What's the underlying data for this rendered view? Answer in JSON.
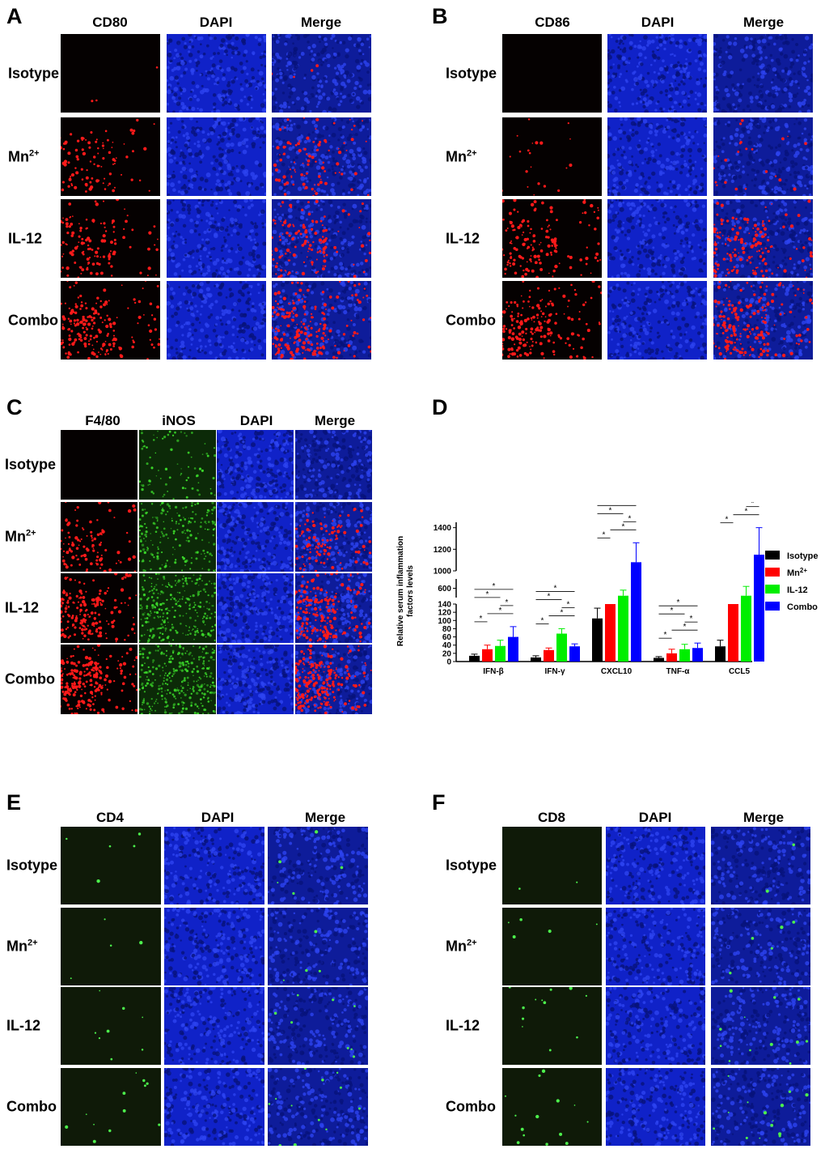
{
  "panels": [
    {
      "letter": "A",
      "columns": [
        "CD80",
        "DAPI",
        "Merge"
      ],
      "rows": [
        {
          "label": "Isotype",
          "sup": ""
        },
        {
          "label": "Mn",
          "sup": "2+"
        },
        {
          "label": "IL-12",
          "sup": ""
        },
        {
          "label": "Combo",
          "sup": ""
        }
      ],
      "marker_color": "red",
      "marker_density": [
        0.02,
        0.45,
        0.6,
        0.9
      ]
    },
    {
      "letter": "B",
      "columns": [
        "CD86",
        "DAPI",
        "Merge"
      ],
      "rows": [
        {
          "label": "Isotype",
          "sup": ""
        },
        {
          "label": "Mn",
          "sup": "2+"
        },
        {
          "label": "IL-12",
          "sup": ""
        },
        {
          "label": "Combo",
          "sup": ""
        }
      ],
      "marker_color": "red",
      "marker_density": [
        0.0,
        0.1,
        0.7,
        0.9
      ]
    },
    {
      "letter": "C",
      "columns": [
        "F4/80",
        "iNOS",
        "DAPI",
        "Merge"
      ],
      "rows": [
        {
          "label": "Isotype",
          "sup": ""
        },
        {
          "label": "Mn",
          "sup": "2+"
        },
        {
          "label": "IL-12",
          "sup": ""
        },
        {
          "label": "Combo",
          "sup": ""
        }
      ],
      "marker_color": "red",
      "marker_density": [
        0.0,
        0.5,
        0.85,
        1.0
      ]
    },
    {
      "letter": "E",
      "columns": [
        "CD4",
        "DAPI",
        "Merge"
      ],
      "rows": [
        {
          "label": "Isotype",
          "sup": ""
        },
        {
          "label": "Mn",
          "sup": "2+"
        },
        {
          "label": "IL-12",
          "sup": ""
        },
        {
          "label": "Combo",
          "sup": ""
        }
      ],
      "marker_color": "green",
      "marker_density": [
        0.12,
        0.1,
        0.2,
        0.3
      ]
    },
    {
      "letter": "F",
      "columns": [
        "CD8",
        "DAPI",
        "Merge"
      ],
      "rows": [
        {
          "label": "Isotype",
          "sup": ""
        },
        {
          "label": "Mn",
          "sup": "2+"
        },
        {
          "label": "IL-12",
          "sup": ""
        },
        {
          "label": "Combo",
          "sup": ""
        }
      ],
      "marker_color": "green",
      "marker_density": [
        0.05,
        0.12,
        0.3,
        0.35
      ]
    }
  ],
  "panel_d_letter": "D",
  "colors": {
    "isotype": "#000000",
    "mn": "#ff0000",
    "il12": "#00ee00",
    "combo": "#0000ff",
    "dapi": "#1a2fd6"
  },
  "chart_data": {
    "type": "bar",
    "title": "",
    "ylabel": "Relative serum inflammation factors levels",
    "xlabel": "",
    "categories": [
      "IFN-β",
      "IFN-γ",
      "CXCL10",
      "TNF-α",
      "CCL5"
    ],
    "series": [
      {
        "name": "Isotype",
        "values": [
          14,
          10,
          105,
          9,
          37
        ],
        "errors": [
          4,
          4,
          25,
          3,
          15
        ]
      },
      {
        "name": "Mn2+",
        "values": [
          30,
          28,
          140,
          20,
          140
        ],
        "errors": [
          10,
          5,
          0,
          10,
          0
        ]
      },
      {
        "name": "IL-12",
        "values": [
          38,
          68,
          520,
          30,
          520
        ],
        "errors": [
          14,
          12,
          60,
          12,
          100
        ]
      },
      {
        "name": "Combo",
        "values": [
          60,
          37,
          1080,
          33,
          1150
        ],
        "errors": [
          25,
          6,
          180,
          12,
          250
        ]
      }
    ],
    "y_segments": [
      {
        "range": [
          0,
          140
        ],
        "ticks": [
          0,
          20,
          40,
          60,
          80,
          100,
          120,
          140
        ]
      },
      {
        "range": [
          500,
          700
        ],
        "ticks": [
          600
        ]
      },
      {
        "range": [
          1000,
          1450
        ],
        "ticks": [
          1000,
          1200,
          1400
        ]
      }
    ],
    "legend": {
      "entries": [
        "Isotype",
        "Mn",
        "IL-12",
        "Combo"
      ],
      "sups": [
        "",
        "2+",
        "",
        ""
      ],
      "placement": "right"
    },
    "significance_marker": "*",
    "significance_counts": [
      5,
      5,
      5,
      5,
      5
    ]
  }
}
